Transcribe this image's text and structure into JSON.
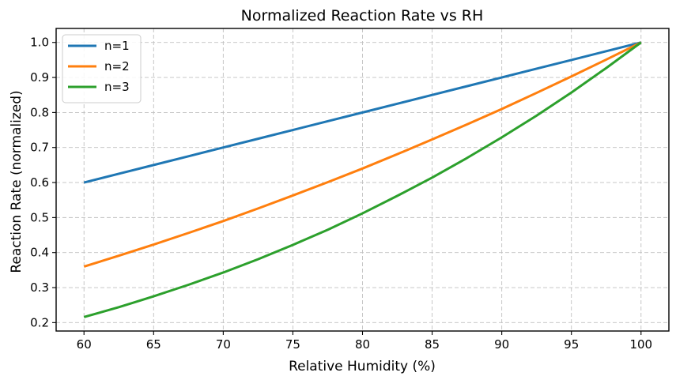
{
  "chart_data": {
    "type": "line",
    "title": "Normalized Reaction Rate vs RH",
    "xlabel": "Relative Humidity (%)",
    "ylabel": "Reaction Rate (normalized)",
    "xlim": [
      58,
      102
    ],
    "ylim": [
      0.176,
      1.04
    ],
    "xticks": [
      60,
      65,
      70,
      75,
      80,
      85,
      90,
      95,
      100
    ],
    "yticks": [
      0.2,
      0.3,
      0.4,
      0.5,
      0.6,
      0.7,
      0.8,
      0.9,
      1.0
    ],
    "xtick_labels": [
      "60",
      "65",
      "70",
      "75",
      "80",
      "85",
      "90",
      "95",
      "100"
    ],
    "ytick_labels": [
      "0.2",
      "0.3",
      "0.4",
      "0.5",
      "0.6",
      "0.7",
      "0.8",
      "0.9",
      "1.0"
    ],
    "grid": true,
    "legend_position": "top-left",
    "x": [
      60,
      62.5,
      65,
      67.5,
      70,
      72.5,
      75,
      77.5,
      80,
      82.5,
      85,
      87.5,
      90,
      92.5,
      95,
      97.5,
      100
    ],
    "series": [
      {
        "name": "n=1",
        "color": "#1f77b4",
        "values": [
          0.6,
          0.625,
          0.65,
          0.675,
          0.7,
          0.725,
          0.75,
          0.775,
          0.8,
          0.825,
          0.85,
          0.875,
          0.9,
          0.925,
          0.95,
          0.975,
          1.0
        ]
      },
      {
        "name": "n=2",
        "color": "#ff7f0e",
        "values": [
          0.36,
          0.391,
          0.423,
          0.456,
          0.49,
          0.526,
          0.563,
          0.601,
          0.64,
          0.681,
          0.723,
          0.766,
          0.81,
          0.856,
          0.903,
          0.951,
          1.0
        ]
      },
      {
        "name": "n=3",
        "color": "#2ca02c",
        "values": [
          0.216,
          0.244,
          0.275,
          0.308,
          0.343,
          0.381,
          0.422,
          0.465,
          0.512,
          0.562,
          0.614,
          0.67,
          0.729,
          0.791,
          0.857,
          0.927,
          1.0
        ]
      }
    ]
  }
}
